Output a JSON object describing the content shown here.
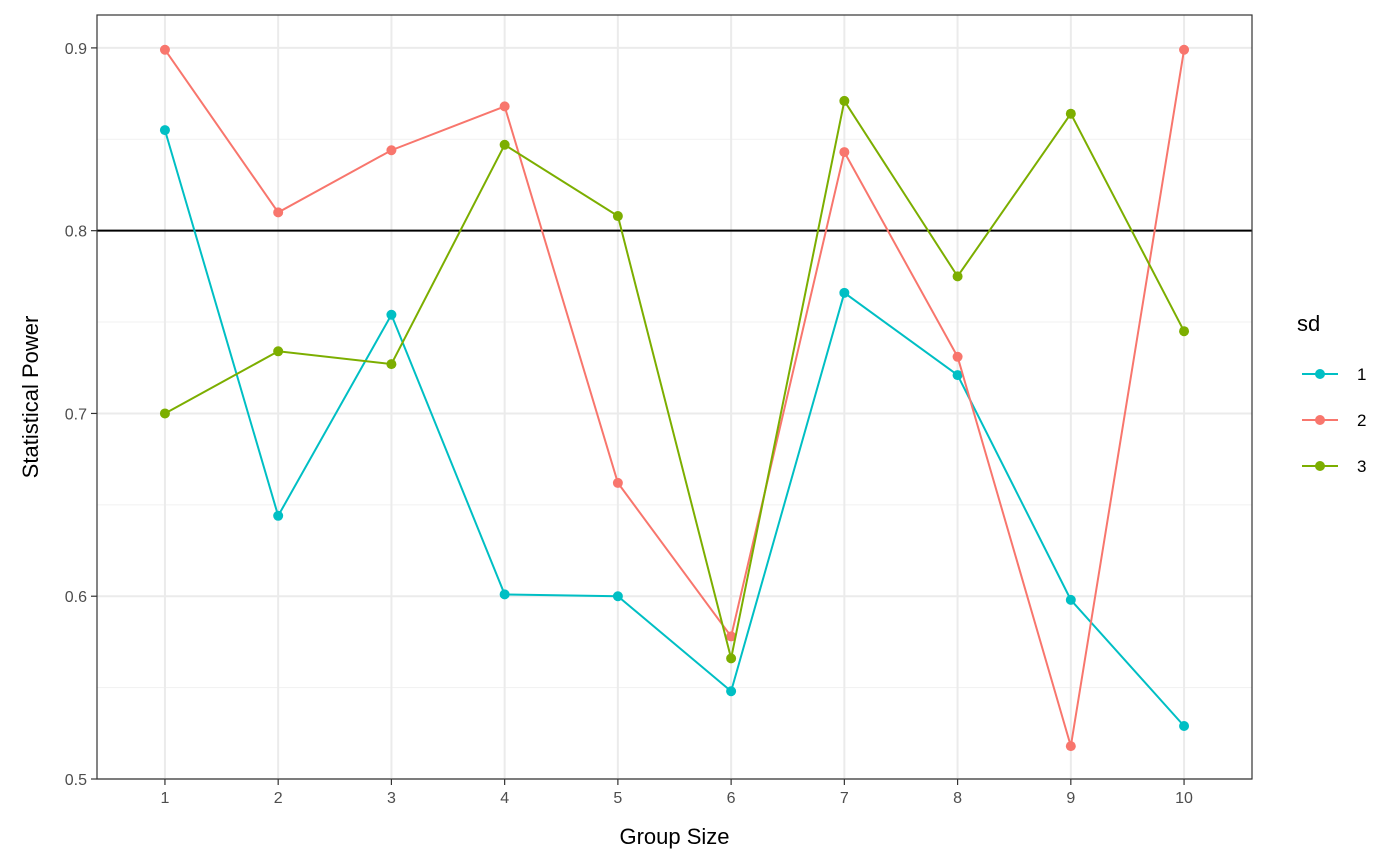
{
  "chart_data": {
    "type": "line",
    "title": "",
    "xlabel": "Group Size",
    "ylabel": "Statistical Power",
    "x": [
      1,
      2,
      3,
      4,
      5,
      6,
      7,
      8,
      9,
      10
    ],
    "xticks": [
      "1",
      "2",
      "3",
      "4",
      "5",
      "6",
      "7",
      "8",
      "9",
      "10"
    ],
    "xlim": [
      0.4,
      10.6
    ],
    "ylim": [
      0.5,
      0.918
    ],
    "yticks": [
      0.5,
      0.6,
      0.7,
      0.8,
      0.9
    ],
    "ytick_labels": [
      "0.5",
      "0.6",
      "0.7",
      "0.8",
      "0.9"
    ],
    "hline": 0.8,
    "hline_color": "#000000",
    "grid": true,
    "legend": {
      "title": "sd",
      "position": "right"
    },
    "series": [
      {
        "name": "1",
        "color": "#00BFC4",
        "values": [
          0.855,
          0.644,
          0.754,
          0.601,
          0.6,
          0.548,
          0.766,
          0.721,
          0.598,
          0.529
        ]
      },
      {
        "name": "2",
        "color": "#F8766D",
        "values": [
          0.899,
          0.81,
          0.844,
          0.868,
          0.662,
          0.578,
          0.843,
          0.731,
          0.518,
          0.899
        ]
      },
      {
        "name": "3",
        "color": "#7CAE00",
        "values": [
          0.7,
          0.734,
          0.727,
          0.847,
          0.808,
          0.566,
          0.871,
          0.775,
          0.864,
          0.745
        ]
      }
    ]
  }
}
